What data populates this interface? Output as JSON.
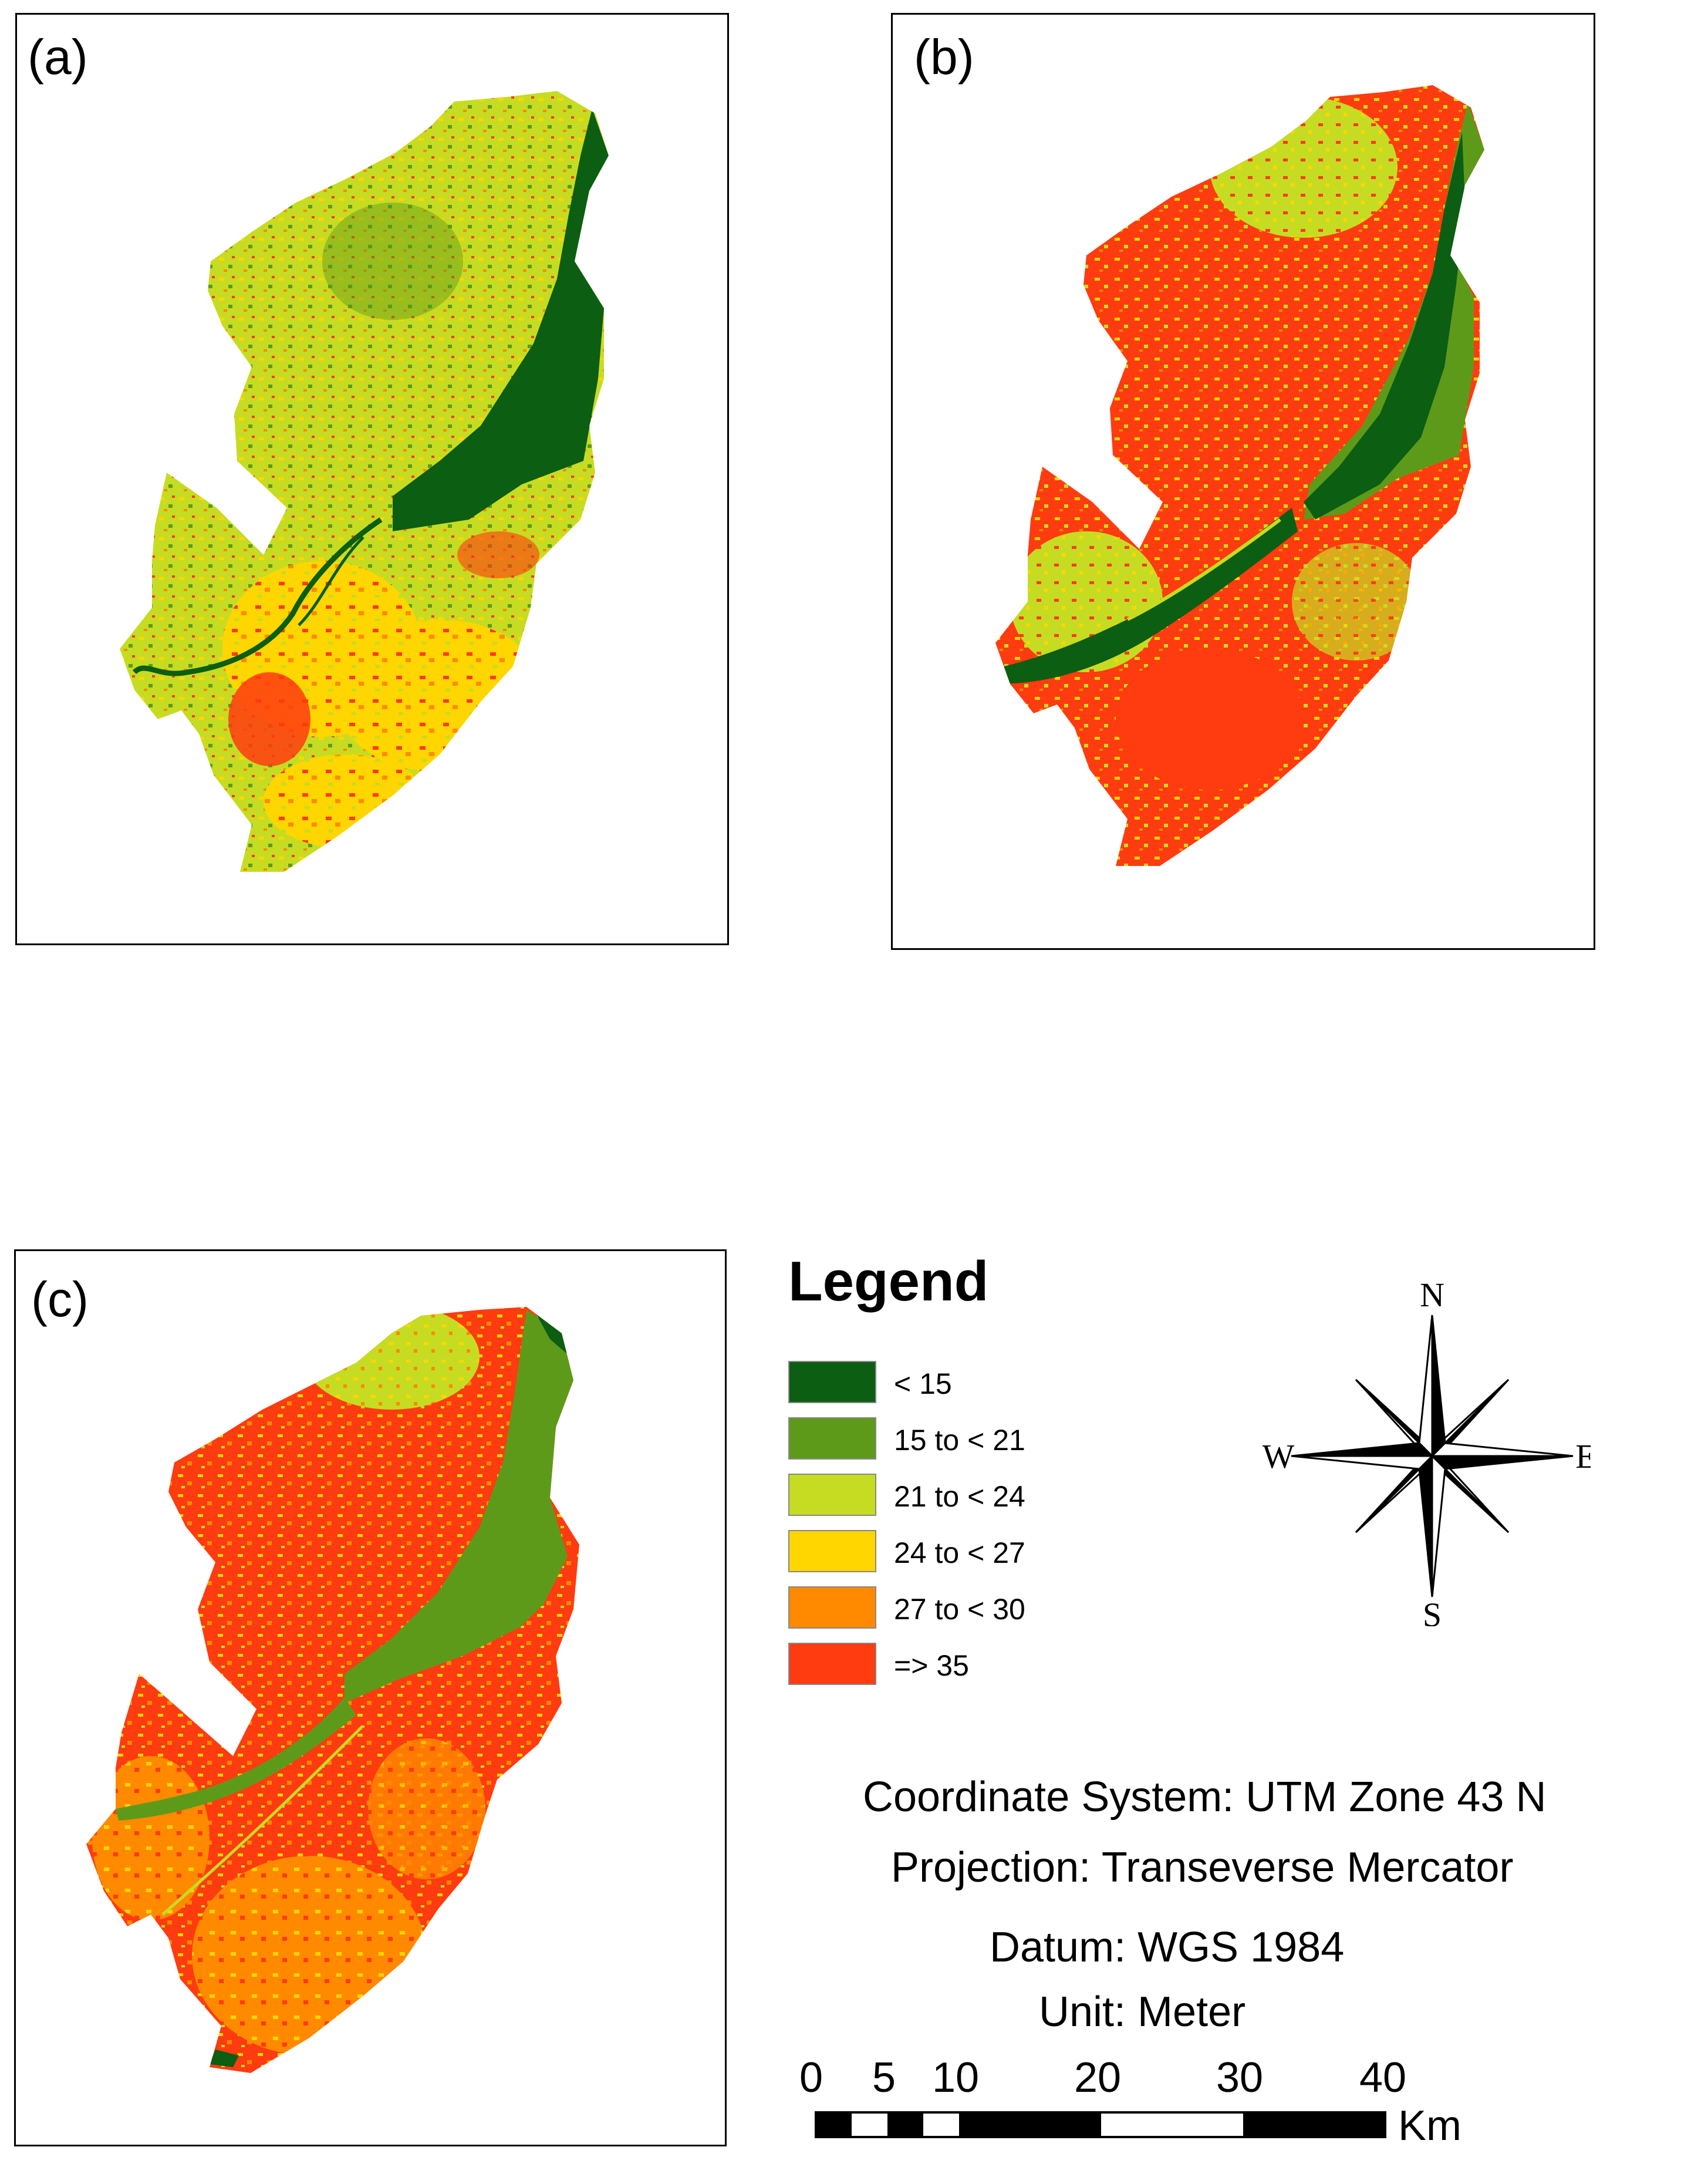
{
  "panels": [
    {
      "id": "a",
      "label": "(a)"
    },
    {
      "id": "b",
      "label": "(b)"
    },
    {
      "id": "c",
      "label": "(c)"
    }
  ],
  "legend": {
    "title": "Legend",
    "items": [
      {
        "label": "< 15",
        "color": "#0b5e12"
      },
      {
        "label": "15 to < 21",
        "color": "#5e9a1a"
      },
      {
        "label": "21 to < 24",
        "color": "#c6dc22"
      },
      {
        "label": "24 to < 27",
        "color": "#ffd600"
      },
      {
        "label": "27 to < 30",
        "color": "#ff8a00"
      },
      {
        "label": "=> 35",
        "color": "#ff3b10"
      }
    ]
  },
  "compass": {
    "north": "N",
    "south": "S",
    "east": "E",
    "west": "W"
  },
  "info": {
    "coordinate_system": "Coordinate System: UTM Zone 43 N",
    "projection": "Projection: Transeverse Mercator",
    "datum": "Datum: WGS 1984",
    "unit": "Unit: Meter"
  },
  "scale": {
    "ticks": [
      "0",
      "5",
      "10",
      "20",
      "30",
      "40"
    ],
    "unit": "Km"
  },
  "map_colors": {
    "dark_green": "#0b5e12",
    "green": "#5e9a1a",
    "yellow_green": "#c6dc22",
    "yellow": "#ffd600",
    "orange": "#ff8a00",
    "red": "#ff3b10"
  }
}
